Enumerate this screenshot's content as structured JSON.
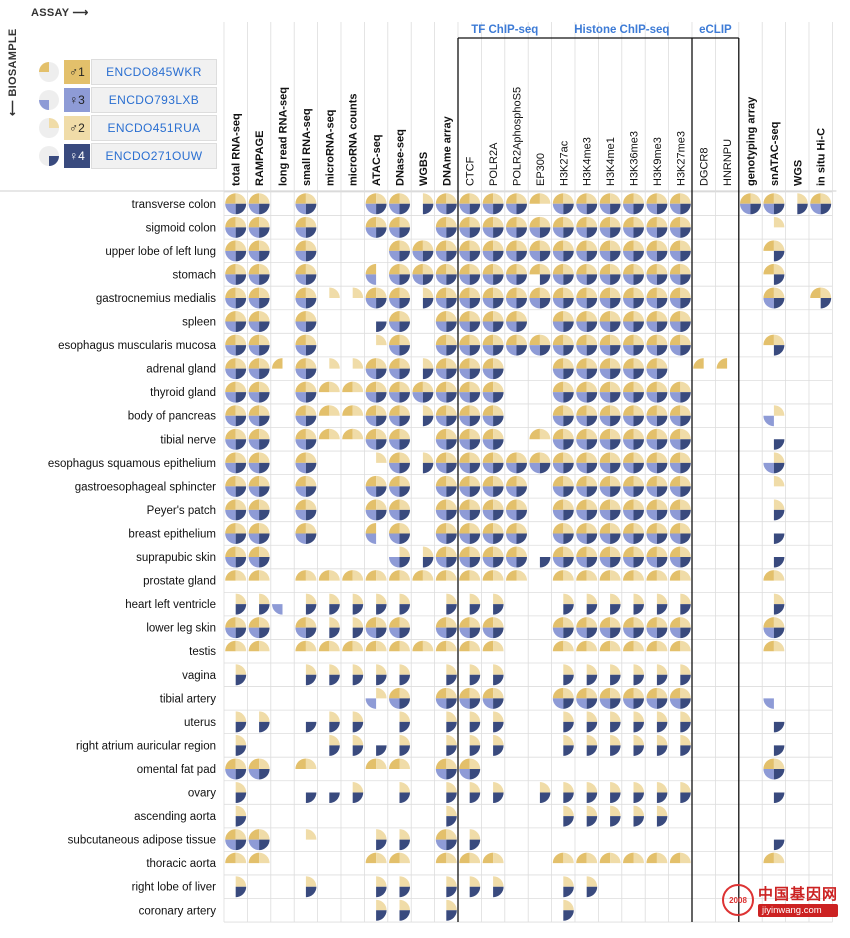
{
  "header": {
    "assay_axis": "ASSAY ⟶",
    "biosample_axis": "⟵ BIOSAMPLE"
  },
  "donors": [
    {
      "sex": "♂",
      "num": "1",
      "id": "ENCDO845WKR",
      "color": "#e3c06b",
      "pie_quadrant": "top-left"
    },
    {
      "sex": "♀",
      "num": "3",
      "id": "ENCDO793LXB",
      "color": "#8e9bd6",
      "pie_quadrant": "bottom-left"
    },
    {
      "sex": "♂",
      "num": "2",
      "id": "ENCDO451RUA",
      "color": "#f0dca8",
      "pie_quadrant": "top-right"
    },
    {
      "sex": "♀",
      "num": "4",
      "id": "ENCDO271OUW",
      "color": "#394a7e",
      "pie_quadrant": "bottom-right"
    }
  ],
  "colors": {
    "donor1": "#e3c06b",
    "donor2": "#f0dca8",
    "donor3": "#8e9bd6",
    "donor4": "#394a7e",
    "grid": "#dddddd",
    "group_label": "#3d7bd6"
  },
  "watermark": {
    "cn": "中国基因网",
    "url": "jiyinwang.com",
    "logo": "2008"
  },
  "chart_data": {
    "type": "heatmap",
    "title": "",
    "encoding": "each cell is a pie of four quadrants: top-left = donor 1 (ENCDO845WKR), top-right = donor 2 (ENCDO451RUA), bottom-left = donor 3 (ENCDO793LXB), bottom-right = donor 4 (ENCDO271OUW); 1 = data present",
    "assays": [
      "total RNA-seq",
      "RAMPAGE",
      "long read RNA-seq",
      "small RNA-seq",
      "microRNA-seq",
      "microRNA counts",
      "ATAC-seq",
      "DNase-seq",
      "WGBS",
      "DNAme array",
      "CTCF",
      "POLR2A",
      "POLR2AphosphoS5",
      "EP300",
      "H3K27ac",
      "H3K4me3",
      "H3K4me1",
      "H3K36me3",
      "H3K9me3",
      "H3K27me3",
      "DGCR8",
      "HNRNPU",
      "genotyping array",
      "snATAC-seq",
      "WGS",
      "in situ Hi-C"
    ],
    "assay_groups": [
      {
        "label": "TF ChIP-seq",
        "start": 10,
        "end": 13
      },
      {
        "label": "Histone ChIP-seq",
        "start": 14,
        "end": 19
      },
      {
        "label": "eCLIP",
        "start": 20,
        "end": 21
      }
    ],
    "biosamples": [
      "transverse colon",
      "sigmoid colon",
      "upper lobe of left lung",
      "stomach",
      "gastrocnemius medialis",
      "spleen",
      "esophagus muscularis mucosa",
      "adrenal gland",
      "thyroid gland",
      "body of pancreas",
      "tibial nerve",
      "esophagus squamous epithelium",
      "gastroesophageal sphincter",
      "Peyer's patch",
      "breast epithelium",
      "suprapubic skin",
      "prostate gland",
      "heart left ventricle",
      "lower leg skin",
      "testis",
      "vagina",
      "tibial artery",
      "uterus",
      "right atrium auricular region",
      "omental fat pad",
      "ovary",
      "ascending aorta",
      "subcutaneous adipose tissue",
      "thoracic aorta",
      "right lobe of liver",
      "coronary artery"
    ],
    "cells": [
      [
        "1111",
        "1111",
        "",
        "1111",
        "",
        "",
        "1111",
        "1111",
        "0101",
        "1111",
        "1111",
        "1111",
        "1111",
        "1100",
        "1111",
        "1111",
        "1111",
        "1111",
        "1111",
        "1111",
        "",
        "",
        "1111",
        "1111",
        "0101",
        "1111"
      ],
      [
        "1111",
        "1111",
        "",
        "1111",
        "",
        "",
        "1111",
        "1111",
        "",
        "1111",
        "1111",
        "1111",
        "1111",
        "1111",
        "1111",
        "1111",
        "1111",
        "1111",
        "1111",
        "1111",
        "",
        "",
        "",
        "0100",
        "",
        ""
      ],
      [
        "1111",
        "1111",
        "",
        "1111",
        "",
        "",
        "",
        "1111",
        "1111",
        "1111",
        "1111",
        "1111",
        "1111",
        "1111",
        "1111",
        "1111",
        "1111",
        "1111",
        "1111",
        "1111",
        "",
        "",
        "",
        "1101",
        "",
        ""
      ],
      [
        "1111",
        "1111",
        "",
        "1111",
        "",
        "",
        "1010",
        "1111",
        "1111",
        "1111",
        "1111",
        "1111",
        "1111",
        "1101",
        "1111",
        "1111",
        "1111",
        "1111",
        "1111",
        "1111",
        "",
        "",
        "",
        "1101",
        "",
        ""
      ],
      [
        "1111",
        "1111",
        "",
        "1111",
        "0100",
        "0100",
        "1111",
        "1111",
        "0101",
        "1111",
        "1111",
        "1111",
        "1111",
        "1111",
        "1111",
        "1111",
        "1111",
        "1111",
        "1111",
        "1111",
        "",
        "",
        "",
        "1111",
        "",
        "1101"
      ],
      [
        "1111",
        "1111",
        "",
        "1111",
        "",
        "",
        "0001",
        "1111",
        "",
        "1111",
        "1111",
        "1111",
        "1111",
        "",
        "1111",
        "1111",
        "1111",
        "1111",
        "1111",
        "1111",
        "",
        "",
        "",
        "",
        "",
        ""
      ],
      [
        "1111",
        "1111",
        "",
        "1111",
        "",
        "",
        "0100",
        "1111",
        "",
        "1111",
        "1111",
        "1111",
        "1111",
        "1111",
        "1111",
        "1111",
        "1111",
        "1111",
        "1111",
        "1111",
        "",
        "",
        "",
        "1101",
        "",
        ""
      ],
      [
        "1111",
        "1111",
        "1000",
        "1111",
        "0100",
        "0100",
        "1111",
        "1111",
        "0101",
        "1111",
        "1111",
        "1111",
        "",
        "",
        "1111",
        "1111",
        "1111",
        "1111",
        "1111",
        "",
        "1000",
        "1000",
        "",
        "",
        "",
        ""
      ],
      [
        "1111",
        "1111",
        "",
        "1111",
        "1100",
        "1100",
        "1111",
        "1111",
        "1111",
        "1111",
        "1111",
        "1111",
        "",
        "",
        "1111",
        "1111",
        "1111",
        "1111",
        "1111",
        "1111",
        "",
        "",
        "",
        "",
        "",
        ""
      ],
      [
        "1111",
        "1111",
        "",
        "1111",
        "1100",
        "1100",
        "1111",
        "1111",
        "0101",
        "1111",
        "1111",
        "1111",
        "",
        "",
        "1111",
        "1111",
        "1111",
        "1111",
        "1111",
        "1111",
        "",
        "",
        "",
        "0110",
        "",
        ""
      ],
      [
        "1111",
        "1111",
        "",
        "1111",
        "1100",
        "1100",
        "1111",
        "1111",
        "",
        "1111",
        "1111",
        "1111",
        "",
        "1100",
        "1111",
        "1111",
        "1111",
        "1111",
        "1111",
        "1111",
        "",
        "",
        "",
        "0001",
        "",
        ""
      ],
      [
        "1111",
        "1111",
        "",
        "1111",
        "",
        "",
        "0100",
        "1111",
        "0101",
        "1111",
        "1111",
        "1111",
        "1111",
        "1111",
        "1111",
        "1111",
        "1111",
        "1111",
        "1111",
        "1111",
        "",
        "",
        "",
        "0111",
        "",
        ""
      ],
      [
        "1111",
        "1111",
        "",
        "1111",
        "",
        "",
        "1111",
        "1111",
        "",
        "1111",
        "1111",
        "1111",
        "1111",
        "",
        "1111",
        "1111",
        "1111",
        "1111",
        "1111",
        "1111",
        "",
        "",
        "",
        "0100",
        "",
        ""
      ],
      [
        "1111",
        "1111",
        "",
        "1111",
        "",
        "",
        "1111",
        "1111",
        "",
        "1111",
        "1111",
        "1111",
        "1111",
        "",
        "1111",
        "1111",
        "1111",
        "1111",
        "1111",
        "1111",
        "",
        "",
        "",
        "0101",
        "",
        ""
      ],
      [
        "1111",
        "1111",
        "",
        "1111",
        "",
        "",
        "1010",
        "1111",
        "",
        "1111",
        "1111",
        "1111",
        "1111",
        "",
        "1111",
        "1111",
        "1111",
        "1111",
        "1111",
        "1111",
        "",
        "",
        "",
        "0001",
        "",
        ""
      ],
      [
        "1111",
        "1111",
        "",
        "",
        "",
        "",
        "",
        "0111",
        "0101",
        "1111",
        "1111",
        "1111",
        "1111",
        "0001",
        "1111",
        "1111",
        "1111",
        "1111",
        "1111",
        "1111",
        "",
        "",
        "",
        "0001",
        "",
        ""
      ],
      [
        "1100",
        "1100",
        "",
        "1100",
        "1100",
        "1100",
        "1100",
        "1100",
        "1100",
        "1100",
        "1100",
        "1100",
        "1100",
        "",
        "1100",
        "1100",
        "1100",
        "1100",
        "1100",
        "1100",
        "",
        "",
        "",
        "1100",
        "",
        ""
      ],
      [
        "0101",
        "0101",
        "0010",
        "0101",
        "0101",
        "0101",
        "0101",
        "0101",
        "",
        "0101",
        "0101",
        "0101",
        "",
        "",
        "0101",
        "0101",
        "0101",
        "0101",
        "0101",
        "0101",
        "",
        "",
        "",
        "0101",
        "",
        ""
      ],
      [
        "1111",
        "1111",
        "",
        "1111",
        "0101",
        "0101",
        "1111",
        "1111",
        "",
        "1111",
        "1111",
        "1111",
        "",
        "",
        "1111",
        "1111",
        "1111",
        "1111",
        "1111",
        "1111",
        "",
        "",
        "",
        "1111",
        "",
        ""
      ],
      [
        "1100",
        "1100",
        "",
        "1100",
        "1100",
        "1100",
        "1100",
        "1100",
        "1100",
        "1100",
        "1100",
        "1100",
        "",
        "",
        "1100",
        "1100",
        "1100",
        "1100",
        "1100",
        "1100",
        "",
        "",
        "",
        "1100",
        "",
        ""
      ],
      [
        "0101",
        "",
        "",
        "0101",
        "0101",
        "0101",
        "0101",
        "0101",
        "",
        "0101",
        "0101",
        "0101",
        "",
        "",
        "0101",
        "0101",
        "0101",
        "0101",
        "0101",
        "0101",
        "",
        "",
        "",
        "",
        "",
        ""
      ],
      [
        "",
        "",
        "",
        "",
        "",
        "",
        "0110",
        "1111",
        "",
        "1111",
        "1111",
        "1111",
        "",
        "",
        "1111",
        "1111",
        "1111",
        "1111",
        "1111",
        "1111",
        "",
        "",
        "",
        "0010",
        "",
        ""
      ],
      [
        "0101",
        "0101",
        "",
        "0001",
        "0101",
        "0101",
        "",
        "0101",
        "",
        "0101",
        "0101",
        "0101",
        "",
        "",
        "0101",
        "0101",
        "0101",
        "0101",
        "0101",
        "0101",
        "",
        "",
        "",
        "0001",
        "",
        ""
      ],
      [
        "0101",
        "",
        "",
        "",
        "0101",
        "0101",
        "0001",
        "0101",
        "",
        "0101",
        "0101",
        "0101",
        "",
        "",
        "0101",
        "0101",
        "0101",
        "0101",
        "0101",
        "0101",
        "",
        "",
        "",
        "0001",
        "",
        ""
      ],
      [
        "1111",
        "1111",
        "",
        "1100",
        "",
        "",
        "1100",
        "1100",
        "",
        "1111",
        "1111",
        "",
        "",
        "",
        "",
        "",
        "",
        "",
        "",
        "",
        "",
        "",
        "",
        "1111",
        "",
        ""
      ],
      [
        "0101",
        "",
        "",
        "0001",
        "0001",
        "0101",
        "",
        "0101",
        "",
        "0101",
        "0101",
        "0101",
        "",
        "0101",
        "0101",
        "0101",
        "0101",
        "0101",
        "0101",
        "0101",
        "",
        "",
        "",
        "0001",
        "",
        ""
      ],
      [
        "0101",
        "",
        "",
        "",
        "",
        "",
        "",
        "",
        "",
        "0101",
        "",
        "",
        "",
        "",
        "0101",
        "0101",
        "0101",
        "0101",
        "0101",
        "",
        "",
        "",
        "",
        "",
        "",
        ""
      ],
      [
        "1111",
        "1111",
        "",
        "0100",
        "",
        "",
        "0101",
        "0101",
        "",
        "1111",
        "0101",
        "",
        "",
        "",
        "",
        "",
        "",
        "",
        "",
        "",
        "",
        "",
        "",
        "0001",
        "",
        ""
      ],
      [
        "1100",
        "1100",
        "",
        "",
        "",
        "",
        "1100",
        "1100",
        "",
        "1100",
        "1100",
        "1100",
        "",
        "",
        "1100",
        "1100",
        "1100",
        "1100",
        "1100",
        "1100",
        "",
        "",
        "",
        "1100",
        "",
        ""
      ],
      [
        "0101",
        "",
        "",
        "0101",
        "",
        "",
        "0101",
        "0101",
        "",
        "0101",
        "0101",
        "0101",
        "",
        "",
        "0101",
        "0101",
        "",
        "",
        "",
        "",
        "",
        "",
        "",
        "",
        "",
        ""
      ],
      [
        "",
        "",
        "",
        "",
        "",
        "",
        "0101",
        "0101",
        "",
        "0101",
        "",
        "",
        "",
        "",
        "0101",
        "",
        "",
        "",
        "",
        "",
        "",
        "",
        "",
        "",
        "",
        ""
      ]
    ]
  }
}
